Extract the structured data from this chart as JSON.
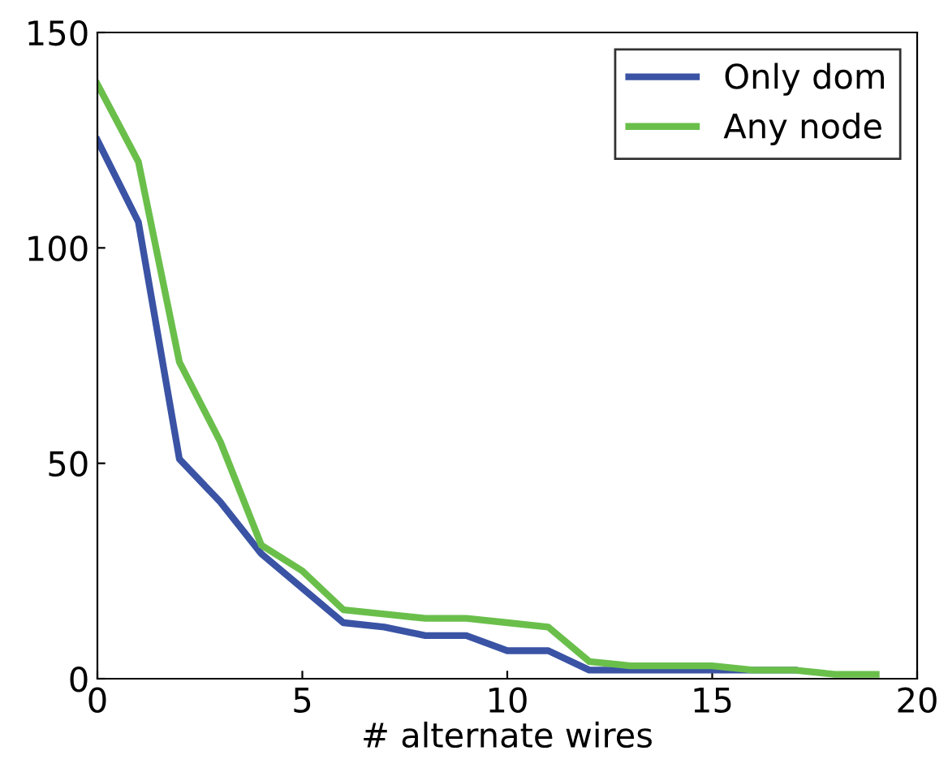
{
  "chart_data": {
    "type": "line",
    "xlabel": "# alternate wires",
    "x": [
      0,
      1,
      2,
      3,
      4,
      5,
      6,
      7,
      8,
      9,
      10,
      11,
      12,
      13,
      14,
      15,
      16,
      17,
      18,
      19
    ],
    "series": [
      {
        "name": "Only dom",
        "color": "#3a53a4",
        "values": [
          125,
          106,
          51,
          41,
          29,
          21,
          13,
          12,
          10,
          10,
          6.5,
          6.5,
          2,
          2,
          2,
          2,
          2,
          2,
          null,
          null
        ]
      },
      {
        "name": "Any node",
        "color": "#6abf4b",
        "values": [
          138,
          120,
          73.5,
          55,
          31,
          25,
          16,
          15,
          14,
          14,
          13,
          12,
          4,
          3,
          3,
          3,
          2,
          2,
          1,
          1
        ]
      }
    ],
    "xlim": [
      0,
      20
    ],
    "xticks": [
      0,
      5,
      10,
      15,
      20
    ],
    "ylim": [
      0,
      150
    ],
    "yticks": [
      0,
      50,
      100,
      150
    ],
    "legend": "top right",
    "grid": false
  }
}
